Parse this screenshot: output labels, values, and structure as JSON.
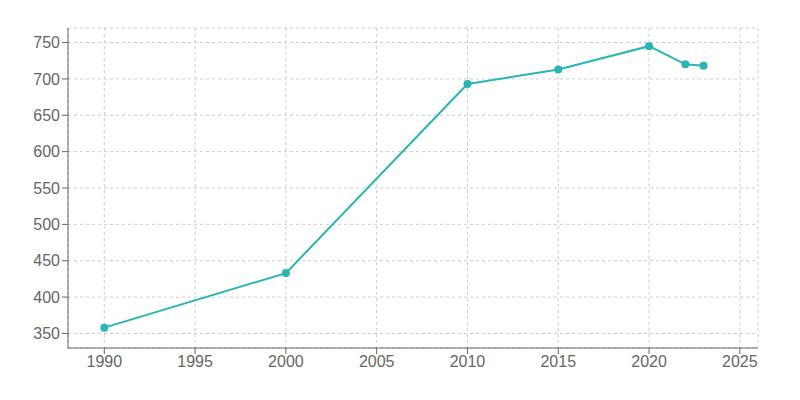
{
  "chart_data": {
    "type": "line",
    "x": [
      1990,
      2000,
      2010,
      2015,
      2020,
      2022,
      2023
    ],
    "values": [
      358,
      433,
      693,
      713,
      745,
      720,
      718
    ],
    "color": "#2ab5b5",
    "marker": "circle",
    "xlim": [
      1988,
      2026
    ],
    "ylim": [
      330,
      770
    ],
    "xticks": [
      1990,
      1995,
      2000,
      2005,
      2010,
      2015,
      2020,
      2025
    ],
    "yticks": [
      350,
      400,
      450,
      500,
      550,
      600,
      650,
      700,
      750
    ],
    "grid": true
  }
}
